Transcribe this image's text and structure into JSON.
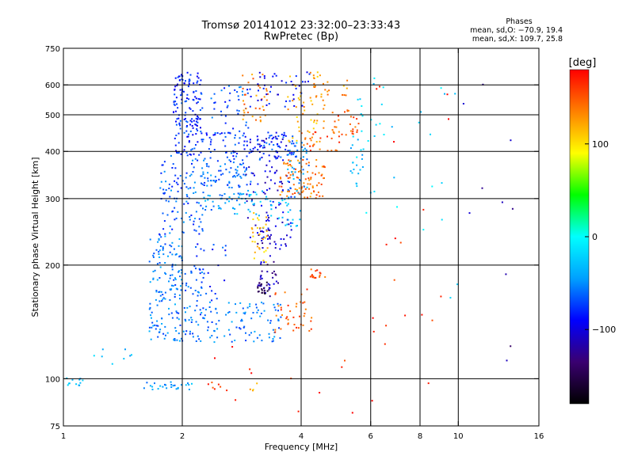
{
  "header": {
    "title_line1": "Tromsø 20141012 23:32:00–23:33:43",
    "title_line2": "RwPretec (Bp)"
  },
  "phases_box": {
    "heading": "Phases",
    "line_o": "mean, sd,O: −70.9, 19.4",
    "line_x": "mean, sd,X: 109.7, 25.8"
  },
  "chart_data": {
    "type": "scatter",
    "xlabel": "Frequency [MHz]",
    "ylabel": "Stationary phase Virtual Height [km]",
    "xscale": "log",
    "yscale": "log",
    "xlim": [
      1,
      16
    ],
    "ylim": [
      75,
      750
    ],
    "xticks": [
      1,
      2,
      4,
      6,
      8,
      10,
      16
    ],
    "xtick_labels": [
      "1",
      "2",
      "4",
      "6",
      "8",
      "10",
      "16"
    ],
    "yticks": [
      75,
      100,
      200,
      300,
      400,
      500,
      600,
      750
    ],
    "ytick_labels": [
      "75",
      "100",
      "200",
      "300",
      "400",
      "500",
      "600",
      "750"
    ],
    "grid_x": [
      2,
      4,
      6,
      8,
      10
    ],
    "grid_y": [
      100,
      200,
      300,
      400,
      500,
      600
    ],
    "colorbar": {
      "label": "[deg]",
      "range": [
        -180,
        180
      ],
      "ticks": [
        100,
        0,
        -100
      ],
      "tick_labels": [
        "100",
        "0",
        "−100"
      ],
      "colors": [
        "#000000",
        "#3a0070",
        "#0000ff",
        "#00a0ff",
        "#00ffff",
        "#00ff00",
        "#ffff00",
        "#ff8000",
        "#ff0000"
      ]
    },
    "clusters": [
      {
        "f": [
          1.0,
          1.12
        ],
        "h": [
          95,
          101
        ],
        "phase": -30,
        "n": 12
      },
      {
        "f": [
          1.12,
          1.5
        ],
        "h": [
          108,
          125
        ],
        "phase": -30,
        "n": 8
      },
      {
        "f": [
          1.6,
          1.95
        ],
        "h": [
          93,
          98
        ],
        "phase": -45,
        "n": 18
      },
      {
        "f": [
          1.95,
          2.15
        ],
        "h": [
          93,
          98
        ],
        "phase": -45,
        "n": 8
      },
      {
        "f": [
          2.3,
          2.55
        ],
        "h": [
          93,
          100
        ],
        "phase": 155,
        "n": 6
      },
      {
        "f": [
          2.95,
          3.15
        ],
        "h": [
          93,
          99
        ],
        "phase": 120,
        "n": 4
      },
      {
        "f": [
          1.65,
          2.0
        ],
        "h": [
          125,
          240
        ],
        "phase": -55,
        "n": 150
      },
      {
        "f": [
          1.75,
          2.3
        ],
        "h": [
          240,
          390
        ],
        "phase": -65,
        "n": 110
      },
      {
        "f": [
          1.9,
          2.25
        ],
        "h": [
          390,
          650
        ],
        "phase": -80,
        "n": 160
      },
      {
        "f": [
          2.0,
          2.3
        ],
        "h": [
          125,
          200
        ],
        "phase": -60,
        "n": 60
      },
      {
        "f": [
          2.3,
          3.6
        ],
        "h": [
          125,
          160
        ],
        "phase": -55,
        "n": 90
      },
      {
        "f": [
          2.25,
          3.0
        ],
        "h": [
          320,
          380
        ],
        "phase": -60,
        "n": 70
      },
      {
        "f": [
          2.25,
          3.0
        ],
        "h": [
          280,
          310
        ],
        "phase": -50,
        "n": 40
      },
      {
        "f": [
          2.25,
          3.9
        ],
        "h": [
          380,
          450
        ],
        "phase": -75,
        "n": 110
      },
      {
        "f": [
          2.35,
          3.0
        ],
        "h": [
          450,
          600
        ],
        "phase": -70,
        "n": 40
      },
      {
        "f": [
          2.1,
          2.6
        ],
        "h": [
          160,
          230
        ],
        "phase": -75,
        "n": 25
      },
      {
        "f": [
          2.9,
          3.8
        ],
        "h": [
          220,
          440
        ],
        "phase": -100,
        "n": 110
      },
      {
        "f": [
          3.1,
          3.5
        ],
        "h": [
          165,
          250
        ],
        "phase": -115,
        "n": 45
      },
      {
        "f": [
          3.1,
          3.3
        ],
        "h": [
          165,
          180
        ],
        "phase": -150,
        "n": 20
      },
      {
        "f": [
          3.0,
          3.3
        ],
        "h": [
          200,
          280
        ],
        "phase": 110,
        "n": 30
      },
      {
        "f": [
          2.8,
          3.3
        ],
        "h": [
          480,
          640
        ],
        "phase": 135,
        "n": 35
      },
      {
        "f": [
          3.5,
          4.6
        ],
        "h": [
          300,
          380
        ],
        "phase": 140,
        "n": 90
      },
      {
        "f": [
          3.4,
          4.3
        ],
        "h": [
          130,
          175
        ],
        "phase": 150,
        "n": 40
      },
      {
        "f": [
          4.2,
          4.6
        ],
        "h": [
          185,
          195
        ],
        "phase": 155,
        "n": 15
      },
      {
        "f": [
          3.7,
          4.6
        ],
        "h": [
          420,
          650
        ],
        "phase": 120,
        "n": 55
      },
      {
        "f": [
          4.0,
          5.0
        ],
        "h": [
          400,
          470
        ],
        "phase": 150,
        "n": 30
      },
      {
        "f": [
          3.1,
          4.2
        ],
        "h": [
          520,
          650
        ],
        "phase": -90,
        "n": 40
      },
      {
        "f": [
          3.7,
          4.2
        ],
        "h": [
          300,
          430
        ],
        "phase": -45,
        "n": 40
      },
      {
        "f": [
          5.3,
          5.8
        ],
        "h": [
          320,
          440
        ],
        "phase": -30,
        "n": 18
      },
      {
        "f": [
          3.5,
          4.0
        ],
        "h": [
          250,
          300
        ],
        "phase": -30,
        "n": 20
      },
      {
        "f": [
          2.7,
          3.4
        ],
        "h": [
          270,
          320
        ],
        "phase": -35,
        "n": 25
      },
      {
        "f": [
          4.8,
          5.6
        ],
        "h": [
          440,
          520
        ],
        "phase": 150,
        "n": 25
      },
      {
        "f": [
          4.3,
          5.3
        ],
        "h": [
          560,
          640
        ],
        "phase": 130,
        "n": 15
      },
      {
        "f": [
          5.5,
          7.0
        ],
        "h": [
          250,
          650
        ],
        "phase": -20,
        "n": 25
      },
      {
        "f": [
          6.0,
          9.5
        ],
        "h": [
          80,
          620
        ],
        "phase": 170,
        "n": 20
      },
      {
        "f": [
          7.5,
          10.5
        ],
        "h": [
          150,
          620
        ],
        "phase": -20,
        "n": 12
      },
      {
        "f": [
          10.0,
          14.0
        ],
        "h": [
          110,
          640
        ],
        "phase": -120,
        "n": 10
      },
      {
        "f": [
          2.3,
          6.0
        ],
        "h": [
          80,
          125
        ],
        "phase": 170,
        "n": 12
      }
    ]
  }
}
